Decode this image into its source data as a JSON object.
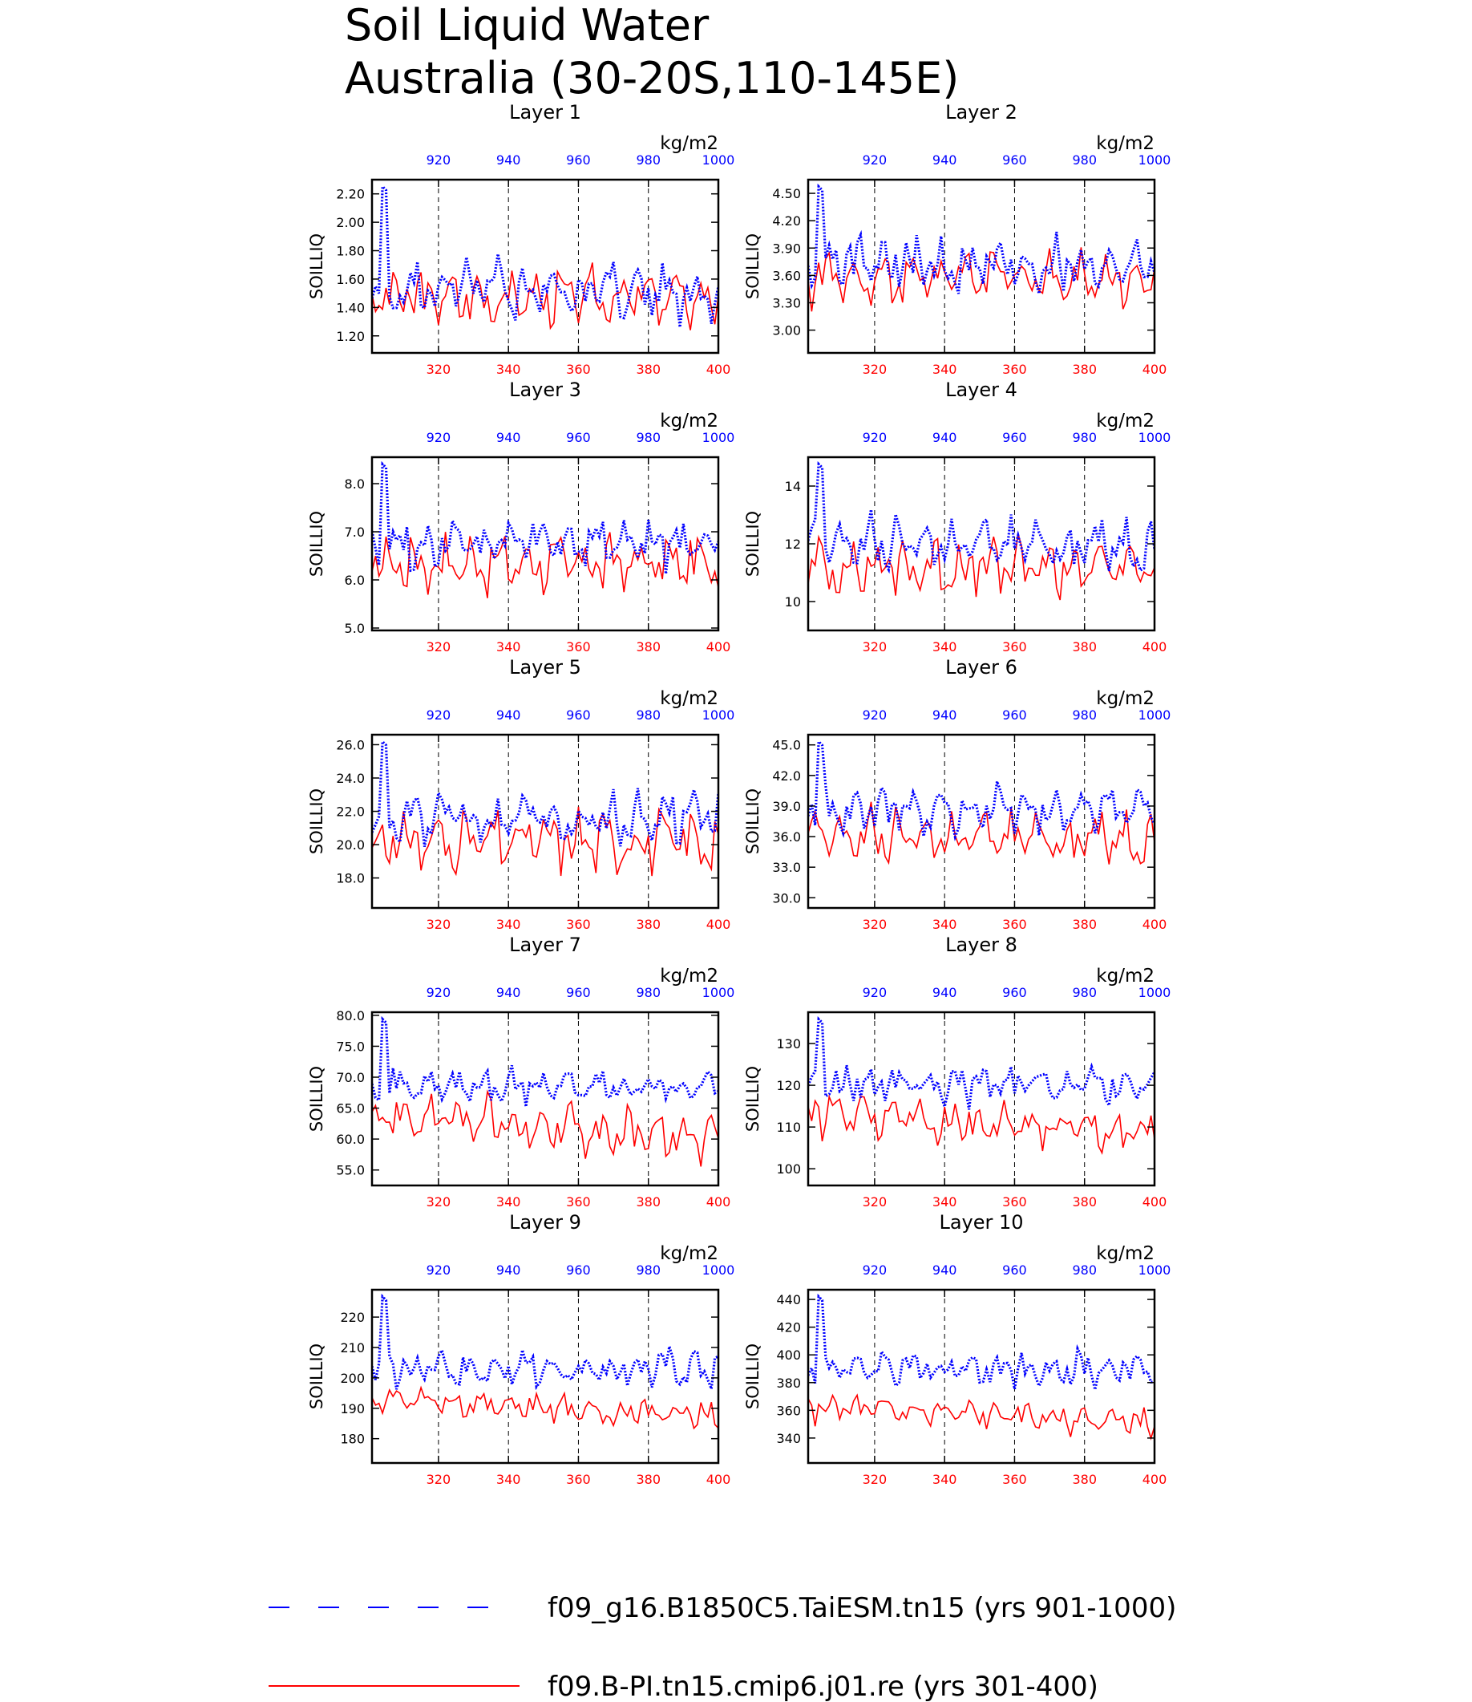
{
  "title_line1": "Soil Liquid Water",
  "title_line2": "Australia (30-20S,110-145E)",
  "legend": [
    {
      "label": "f09_g16.B1850C5.TaiESM.tn15 (yrs 901-1000)",
      "color": "#0000ff",
      "style": "dashed"
    },
    {
      "label": "f09.B-PI.tn15.cmip6.j01.re (yrs 301-400)",
      "color": "#ff0000",
      "style": "solid"
    }
  ],
  "colors": {
    "blue": "#0000ff",
    "red": "#ff0000"
  },
  "chart_data": [
    {
      "type": "line",
      "title": "Layer 1",
      "ylabel": "SOILLIQ",
      "units": "kg/m2",
      "yticks": [
        "1.20",
        "1.40",
        "1.60",
        "1.80",
        "2.00",
        "2.20"
      ],
      "yticks_v": [
        1.2,
        1.4,
        1.6,
        1.8,
        2.0,
        2.2
      ],
      "ylim": [
        1.08,
        2.3
      ],
      "x_bottom": {
        "ticks": [
          320,
          340,
          360,
          380,
          400
        ],
        "lim": [
          301,
          400
        ]
      },
      "x_top": {
        "ticks": [
          920,
          940,
          960,
          980,
          1000
        ],
        "lim": [
          901,
          1000
        ]
      },
      "blue_base": 1.52,
      "blue_amp": 0.19,
      "red_base": 1.47,
      "red_amp": 0.17
    },
    {
      "type": "line",
      "title": "Layer 2",
      "ylabel": "SOILLIQ",
      "units": "kg/m2",
      "yticks": [
        "3.00",
        "3.30",
        "3.60",
        "3.90",
        "4.20",
        "4.50"
      ],
      "yticks_v": [
        3.0,
        3.3,
        3.6,
        3.9,
        4.2,
        4.5
      ],
      "ylim": [
        2.75,
        4.65
      ],
      "x_bottom": {
        "ticks": [
          320,
          340,
          360,
          380,
          400
        ],
        "lim": [
          301,
          400
        ]
      },
      "x_top": {
        "ticks": [
          920,
          940,
          960,
          980,
          1000
        ],
        "lim": [
          901,
          1000
        ]
      },
      "blue_base": 3.72,
      "blue_amp": 0.26,
      "red_base": 3.58,
      "red_amp": 0.26
    },
    {
      "type": "line",
      "title": "Layer 3",
      "ylabel": "SOILLIQ",
      "units": "kg/m2",
      "yticks": [
        "5.0",
        "6.0",
        "7.0",
        "8.0"
      ],
      "yticks_v": [
        5.0,
        6.0,
        7.0,
        8.0
      ],
      "ylim": [
        4.95,
        8.55
      ],
      "x_bottom": {
        "ticks": [
          320,
          340,
          360,
          380,
          400
        ],
        "lim": [
          301,
          400
        ]
      },
      "x_top": {
        "ticks": [
          920,
          940,
          960,
          980,
          1000
        ],
        "lim": [
          901,
          1000
        ]
      },
      "blue_base": 6.75,
      "blue_amp": 0.45,
      "red_base": 6.35,
      "red_amp": 0.5
    },
    {
      "type": "line",
      "title": "Layer 4",
      "ylabel": "SOILLIQ",
      "units": "kg/m2",
      "yticks": [
        "10",
        "12",
        "14"
      ],
      "yticks_v": [
        10,
        12,
        14
      ],
      "ylim": [
        9.0,
        15.0
      ],
      "x_bottom": {
        "ticks": [
          320,
          340,
          360,
          380,
          400
        ],
        "lim": [
          301,
          400
        ]
      },
      "x_top": {
        "ticks": [
          920,
          940,
          960,
          980,
          1000
        ],
        "lim": [
          901,
          1000
        ]
      },
      "blue_base": 12.0,
      "blue_amp": 0.8,
      "red_base": 11.2,
      "red_amp": 0.9
    },
    {
      "type": "line",
      "title": "Layer 5",
      "ylabel": "SOILLIQ",
      "units": "kg/m2",
      "yticks": [
        "18.0",
        "20.0",
        "22.0",
        "24.0",
        "26.0"
      ],
      "yticks_v": [
        18,
        20,
        22,
        24,
        26
      ],
      "ylim": [
        16.2,
        26.6
      ],
      "x_bottom": {
        "ticks": [
          320,
          340,
          360,
          380,
          400
        ],
        "lim": [
          301,
          400
        ]
      },
      "x_top": {
        "ticks": [
          920,
          940,
          960,
          980,
          1000
        ],
        "lim": [
          901,
          1000
        ]
      },
      "blue_base": 21.6,
      "blue_amp": 1.3,
      "red_base": 20.2,
      "red_amp": 1.6
    },
    {
      "type": "line",
      "title": "Layer 6",
      "ylabel": "SOILLIQ",
      "units": "kg/m2",
      "yticks": [
        "30.0",
        "33.0",
        "36.0",
        "39.0",
        "42.0",
        "45.0"
      ],
      "yticks_v": [
        30,
        33,
        36,
        39,
        42,
        45
      ],
      "ylim": [
        29.0,
        46.0
      ],
      "x_bottom": {
        "ticks": [
          320,
          340,
          360,
          380,
          400
        ],
        "lim": [
          301,
          400
        ]
      },
      "x_top": {
        "ticks": [
          920,
          940,
          960,
          980,
          1000
        ],
        "lim": [
          901,
          1000
        ]
      },
      "blue_base": 38.6,
      "blue_amp": 2.0,
      "red_base": 36.0,
      "red_amp": 2.3
    },
    {
      "type": "line",
      "title": "Layer 7",
      "ylabel": "SOILLIQ",
      "units": "kg/m2",
      "yticks": [
        "55.0",
        "60.0",
        "65.0",
        "70.0",
        "75.0",
        "80.0"
      ],
      "yticks_v": [
        55,
        60,
        65,
        70,
        75,
        80
      ],
      "ylim": [
        52.5,
        80.5
      ],
      "x_bottom": {
        "ticks": [
          320,
          340,
          360,
          380,
          400
        ],
        "lim": [
          301,
          400
        ]
      },
      "x_top": {
        "ticks": [
          920,
          940,
          960,
          980,
          1000
        ],
        "lim": [
          901,
          1000
        ]
      },
      "blue_base": 68.5,
      "blue_amp": 2.8,
      "red_base": 64.0,
      "red_amp": 3.5
    },
    {
      "type": "line",
      "title": "Layer 8",
      "ylabel": "SOILLIQ",
      "units": "kg/m2",
      "yticks": [
        "100",
        "110",
        "120",
        "130"
      ],
      "yticks_v": [
        100,
        110,
        120,
        130
      ],
      "ylim": [
        96.0,
        137.5
      ],
      "x_bottom": {
        "ticks": [
          320,
          340,
          360,
          380,
          400
        ],
        "lim": [
          301,
          400
        ]
      },
      "x_top": {
        "ticks": [
          920,
          940,
          960,
          980,
          1000
        ],
        "lim": [
          901,
          1000
        ]
      },
      "blue_base": 120.0,
      "blue_amp": 4.0,
      "red_base": 113.5,
      "red_amp": 4.5
    },
    {
      "type": "line",
      "title": "Layer 9",
      "ylabel": "SOILLIQ",
      "units": "kg/m2",
      "yticks": [
        "180",
        "190",
        "200",
        "210",
        "220"
      ],
      "yticks_v": [
        180,
        190,
        200,
        210,
        220
      ],
      "ylim": [
        172.0,
        229.0
      ],
      "x_bottom": {
        "ticks": [
          320,
          340,
          360,
          380,
          400
        ],
        "lim": [
          301,
          400
        ]
      },
      "x_top": {
        "ticks": [
          920,
          940,
          960,
          980,
          1000
        ],
        "lim": [
          901,
          1000
        ]
      },
      "blue_base": 203.0,
      "blue_amp": 5.5,
      "red_base": 193.0,
      "red_amp": 4.5
    },
    {
      "type": "line",
      "title": "Layer 10",
      "ylabel": "SOILLIQ",
      "units": "kg/m2",
      "yticks": [
        "340",
        "360",
        "380",
        "400",
        "420",
        "440"
      ],
      "yticks_v": [
        340,
        360,
        380,
        400,
        420,
        440
      ],
      "ylim": [
        322.0,
        447.0
      ],
      "x_bottom": {
        "ticks": [
          320,
          340,
          360,
          380,
          400
        ],
        "lim": [
          301,
          400
        ]
      },
      "x_top": {
        "ticks": [
          920,
          940,
          960,
          980,
          1000
        ],
        "lim": [
          901,
          1000
        ]
      },
      "blue_base": 390.0,
      "blue_amp": 11.0,
      "red_base": 362.0,
      "red_amp": 9.0
    }
  ]
}
